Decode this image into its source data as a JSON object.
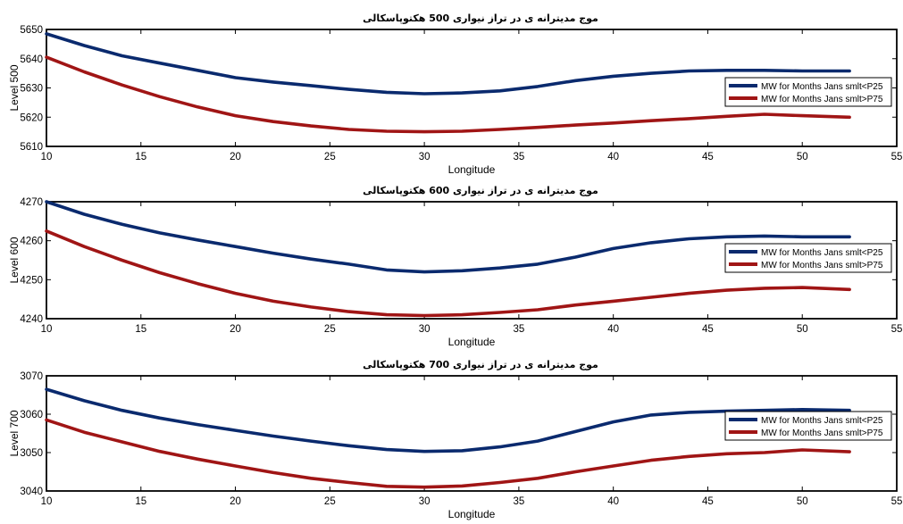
{
  "colors": {
    "series_p25": "#0a2a6e",
    "series_p75": "#a01515",
    "axis": "#000000",
    "background": "#ffffff"
  },
  "chart_data": [
    {
      "type": "line",
      "title": "موج مديترانه ی در تراز نيواری 500 هكتوپاسكالی",
      "xlabel": "Longitude",
      "ylabel": "Level 500",
      "xlim": [
        10,
        55
      ],
      "ylim": [
        5610,
        5650
      ],
      "xticks": [
        "10",
        "15",
        "20",
        "25",
        "30",
        "35",
        "40",
        "45",
        "50",
        "55"
      ],
      "yticks": [
        "5610",
        "5620",
        "5630",
        "5640",
        "5650"
      ],
      "grid": false,
      "legend_position": "right",
      "series": [
        {
          "name": "MW for Months Jans smlt<P25",
          "x": [
            10,
            12,
            14,
            16,
            18,
            20,
            22,
            24,
            26,
            28,
            30,
            32,
            34,
            36,
            38,
            40,
            42,
            44,
            46,
            48,
            50,
            52.5
          ],
          "y": [
            5648.5,
            5644.5,
            5641,
            5638.5,
            5636,
            5633.5,
            5632,
            5630.8,
            5629.5,
            5628.5,
            5628,
            5628.3,
            5629,
            5630.5,
            5632.5,
            5634,
            5635,
            5635.8,
            5636,
            5636,
            5635.8,
            5635.8
          ]
        },
        {
          "name": "MW for Months Jans smlt>P75",
          "x": [
            10,
            12,
            14,
            16,
            18,
            20,
            22,
            24,
            26,
            28,
            30,
            32,
            34,
            36,
            38,
            40,
            42,
            44,
            46,
            48,
            50,
            52.5
          ],
          "y": [
            5640.5,
            5635.5,
            5631,
            5627,
            5623.5,
            5620.5,
            5618.5,
            5617,
            5615.8,
            5615.2,
            5615,
            5615.2,
            5615.8,
            5616.5,
            5617.3,
            5618,
            5618.8,
            5619.5,
            5620.3,
            5621,
            5620.5,
            5620
          ]
        }
      ]
    },
    {
      "type": "line",
      "title": "موج مديترانه ی در تراز نيواری 600 هكتوپاسكالی",
      "xlabel": "Longitude",
      "ylabel": "Level 600",
      "xlim": [
        10,
        55
      ],
      "ylim": [
        4240,
        4270
      ],
      "xticks": [
        "10",
        "15",
        "20",
        "25",
        "30",
        "35",
        "40",
        "45",
        "50",
        "55"
      ],
      "yticks": [
        "4240",
        "4250",
        "4260",
        "4270"
      ],
      "grid": false,
      "legend_position": "right",
      "series": [
        {
          "name": "MW for Months Jans smlt<P25",
          "x": [
            10,
            12,
            14,
            16,
            18,
            20,
            22,
            24,
            26,
            28,
            30,
            32,
            34,
            36,
            38,
            40,
            42,
            44,
            46,
            48,
            50,
            52.5
          ],
          "y": [
            4270,
            4266.8,
            4264.2,
            4262,
            4260.2,
            4258.5,
            4256.8,
            4255.3,
            4254,
            4252.5,
            4252,
            4252.3,
            4253,
            4254,
            4255.8,
            4258,
            4259.5,
            4260.5,
            4261,
            4261.2,
            4261,
            4261
          ]
        },
        {
          "name": "MW for Months Jans smlt>P75",
          "x": [
            10,
            12,
            14,
            16,
            18,
            20,
            22,
            24,
            26,
            28,
            30,
            32,
            34,
            36,
            38,
            40,
            42,
            44,
            46,
            48,
            50,
            52.5
          ],
          "y": [
            4262.5,
            4258.5,
            4255,
            4251.8,
            4249,
            4246.5,
            4244.5,
            4243,
            4241.8,
            4241,
            4240.8,
            4241,
            4241.6,
            4242.3,
            4243.5,
            4244.5,
            4245.5,
            4246.5,
            4247.3,
            4247.8,
            4248,
            4247.5
          ]
        }
      ]
    },
    {
      "type": "line",
      "title": "موج مديترانه ی در تراز نيواری 700 هكتوپاسكالی",
      "xlabel": "Longitude",
      "ylabel": "Level 700",
      "xlim": [
        10,
        55
      ],
      "ylim": [
        3040,
        3070
      ],
      "xticks": [
        "10",
        "15",
        "20",
        "25",
        "30",
        "35",
        "40",
        "45",
        "50",
        "55"
      ],
      "yticks": [
        "3040",
        "3050",
        "3060",
        "3070"
      ],
      "grid": false,
      "legend_position": "right",
      "series": [
        {
          "name": "MW for Months Jans smlt<P25",
          "x": [
            10,
            12,
            14,
            16,
            18,
            20,
            22,
            24,
            26,
            28,
            30,
            32,
            34,
            36,
            38,
            40,
            42,
            44,
            46,
            48,
            50,
            52.5
          ],
          "y": [
            3066.5,
            3063.5,
            3061,
            3059,
            3057.3,
            3055.8,
            3054.3,
            3053,
            3051.8,
            3050.8,
            3050.3,
            3050.5,
            3051.5,
            3053,
            3055.5,
            3058,
            3059.8,
            3060.5,
            3060.8,
            3061,
            3061.2,
            3061
          ]
        },
        {
          "name": "MW for Months Jans smlt>P75",
          "x": [
            10,
            12,
            14,
            16,
            18,
            20,
            22,
            24,
            26,
            28,
            30,
            32,
            34,
            36,
            38,
            40,
            42,
            44,
            46,
            48,
            50,
            52.5
          ],
          "y": [
            3058.5,
            3055.3,
            3052.8,
            3050.3,
            3048.3,
            3046.5,
            3044.8,
            3043.3,
            3042.2,
            3041.2,
            3041,
            3041.3,
            3042.2,
            3043.3,
            3045,
            3046.5,
            3048,
            3049,
            3049.7,
            3050,
            3050.7,
            3050.2
          ]
        }
      ]
    }
  ]
}
